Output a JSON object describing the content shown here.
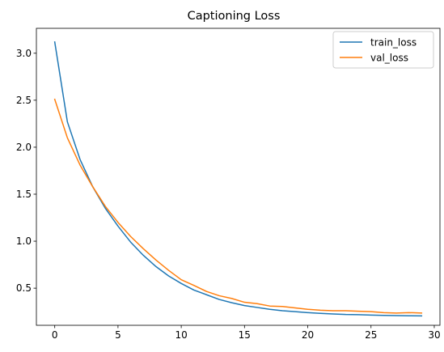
{
  "chart_data": {
    "type": "line",
    "title": "Captioning Loss",
    "xlabel": "",
    "ylabel": "",
    "xlim": [
      -1.45,
      30.45
    ],
    "ylim": [
      0.105,
      3.265
    ],
    "x_ticks": [
      0,
      5,
      10,
      15,
      20,
      25,
      30
    ],
    "y_ticks": [
      0.5,
      1.0,
      1.5,
      2.0,
      2.5,
      3.0
    ],
    "y_tick_labels": [
      "0.5",
      "1.0",
      "1.5",
      "2.0",
      "2.5",
      "3.0"
    ],
    "grid": false,
    "legend": "top-right",
    "x": [
      0,
      1,
      2,
      3,
      4,
      5,
      6,
      7,
      8,
      9,
      10,
      11,
      12,
      13,
      14,
      15,
      16,
      17,
      18,
      19,
      20,
      21,
      22,
      23,
      24,
      25,
      26,
      27,
      28,
      29
    ],
    "series": [
      {
        "name": "train_loss",
        "color": "#1f77b4",
        "values": [
          3.12,
          2.27,
          1.87,
          1.58,
          1.35,
          1.16,
          0.99,
          0.85,
          0.73,
          0.63,
          0.55,
          0.48,
          0.43,
          0.38,
          0.345,
          0.315,
          0.295,
          0.275,
          0.26,
          0.25,
          0.24,
          0.232,
          0.226,
          0.22,
          0.218,
          0.214,
          0.21,
          0.208,
          0.206,
          0.205
        ]
      },
      {
        "name": "val_loss",
        "color": "#ff7f0e",
        "values": [
          2.51,
          2.1,
          1.81,
          1.58,
          1.37,
          1.2,
          1.05,
          0.92,
          0.8,
          0.69,
          0.59,
          0.53,
          0.465,
          0.42,
          0.39,
          0.35,
          0.335,
          0.31,
          0.305,
          0.29,
          0.275,
          0.265,
          0.26,
          0.26,
          0.255,
          0.25,
          0.24,
          0.235,
          0.24,
          0.235
        ]
      }
    ]
  }
}
